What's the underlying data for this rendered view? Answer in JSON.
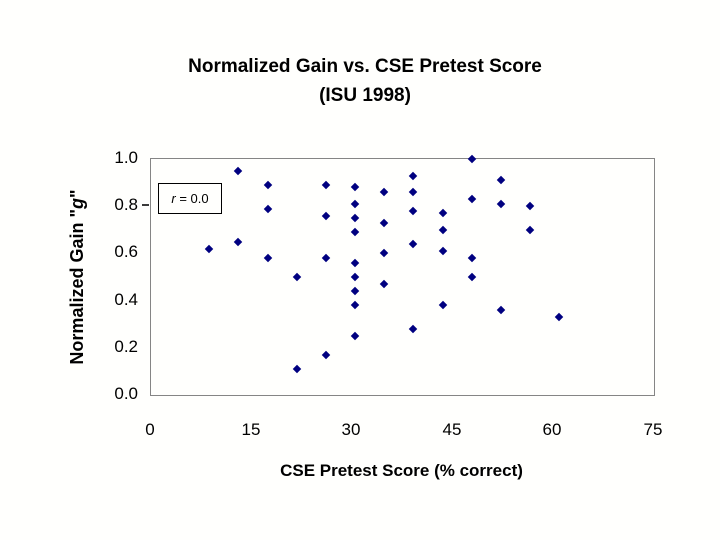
{
  "title": {
    "line1": "Normalized Gain vs. CSE Pretest Score",
    "line2": "(ISU 1998)"
  },
  "y_axis": {
    "label_prefix": "Normalized Gain \"",
    "label_italic": "g",
    "label_suffix": "\"",
    "ticks": [
      "1.0",
      "0.8",
      "0.6",
      "0.4",
      "0.2",
      "0.0"
    ]
  },
  "x_axis": {
    "label": "CSE Pretest Score (% correct)",
    "ticks": [
      "0",
      "15",
      "30",
      "45",
      "60",
      "75"
    ]
  },
  "annotation": {
    "r_italic": "r",
    "r_rest": " = 0.0"
  },
  "colors": {
    "marker": "#000080",
    "plot_border": "#858585",
    "text": "#000000",
    "background": "#fffffd"
  },
  "chart_data": {
    "type": "scatter",
    "title": "Normalized Gain vs. CSE Pretest Score (ISU 1998)",
    "xlabel": "CSE Pretest Score (% correct)",
    "ylabel": "Normalized Gain \"g\"",
    "xlim": [
      0,
      75
    ],
    "ylim": [
      0.0,
      1.0
    ],
    "x_ticks": [
      0,
      15,
      30,
      45,
      60,
      75
    ],
    "y_ticks": [
      0.0,
      0.2,
      0.4,
      0.6,
      0.8,
      1.0
    ],
    "grid": false,
    "legend": false,
    "annotation": "r = 0.0",
    "marker": "diamond",
    "points": [
      {
        "x": 8.7,
        "y": 0.62
      },
      {
        "x": 13.0,
        "y": 0.95
      },
      {
        "x": 13.0,
        "y": 0.65
      },
      {
        "x": 17.4,
        "y": 0.89
      },
      {
        "x": 17.4,
        "y": 0.79
      },
      {
        "x": 17.4,
        "y": 0.58
      },
      {
        "x": 21.7,
        "y": 0.5
      },
      {
        "x": 21.7,
        "y": 0.11
      },
      {
        "x": 26.1,
        "y": 0.89
      },
      {
        "x": 26.1,
        "y": 0.76
      },
      {
        "x": 26.1,
        "y": 0.58
      },
      {
        "x": 26.1,
        "y": 0.17
      },
      {
        "x": 30.4,
        "y": 0.88
      },
      {
        "x": 30.4,
        "y": 0.81
      },
      {
        "x": 30.4,
        "y": 0.75
      },
      {
        "x": 30.4,
        "y": 0.69
      },
      {
        "x": 30.4,
        "y": 0.56
      },
      {
        "x": 30.4,
        "y": 0.5
      },
      {
        "x": 30.4,
        "y": 0.44
      },
      {
        "x": 30.4,
        "y": 0.38
      },
      {
        "x": 30.4,
        "y": 0.25
      },
      {
        "x": 34.8,
        "y": 0.86
      },
      {
        "x": 34.8,
        "y": 0.73
      },
      {
        "x": 34.8,
        "y": 0.6
      },
      {
        "x": 34.8,
        "y": 0.47
      },
      {
        "x": 39.1,
        "y": 0.93
      },
      {
        "x": 39.1,
        "y": 0.86
      },
      {
        "x": 39.1,
        "y": 0.78
      },
      {
        "x": 39.1,
        "y": 0.64
      },
      {
        "x": 39.1,
        "y": 0.28
      },
      {
        "x": 43.5,
        "y": 0.77
      },
      {
        "x": 43.5,
        "y": 0.7
      },
      {
        "x": 43.5,
        "y": 0.61
      },
      {
        "x": 43.5,
        "y": 0.38
      },
      {
        "x": 47.8,
        "y": 1.0
      },
      {
        "x": 47.8,
        "y": 0.83
      },
      {
        "x": 47.8,
        "y": 0.58
      },
      {
        "x": 47.8,
        "y": 0.5
      },
      {
        "x": 52.2,
        "y": 0.91
      },
      {
        "x": 52.2,
        "y": 0.81
      },
      {
        "x": 52.2,
        "y": 0.36
      },
      {
        "x": 56.5,
        "y": 0.8
      },
      {
        "x": 56.5,
        "y": 0.7
      },
      {
        "x": 60.9,
        "y": 0.33
      }
    ]
  }
}
